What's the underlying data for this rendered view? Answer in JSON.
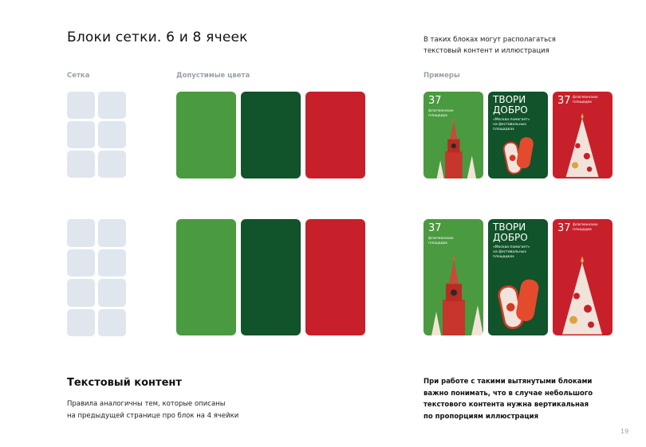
{
  "title": "Блоки сетки. 6 и 8 ячеек",
  "note": [
    "В таких блоках могут располагаться",
    "текстовый контент и иллюстрация"
  ],
  "labels": {
    "grid": "Сетка",
    "colors": "Допустимые цвета",
    "examples": "Примеры"
  },
  "colors": {
    "green": "#4a9a3f",
    "dark_green": "#11532a",
    "red": "#c8202a",
    "cell": "#dfe6ee"
  },
  "cards": {
    "kremlin": {
      "number": "37",
      "caption": [
        "флагманских",
        "площадок"
      ]
    },
    "mittens": {
      "headline": [
        "ТВОРИ",
        "ДОБРО"
      ],
      "caption": [
        "«Москва помогает»",
        "на фестивальных",
        "площадках"
      ]
    },
    "tree": {
      "number": "37",
      "caption": [
        "флагманских",
        "площадок"
      ]
    }
  },
  "text_section": {
    "heading": "Текстовый контент",
    "body": [
      "Правила аналогичны тем, которые описаны",
      "на предыдущей странице про блок на 4 ячейки"
    ]
  },
  "bold_note": [
    "При работе с такими вытянутыми блоками",
    "важно понимать, что в случае небольшого",
    "текстового контента нужна вертикальная",
    "по пропорциям иллюстрация"
  ],
  "page_number": "19"
}
